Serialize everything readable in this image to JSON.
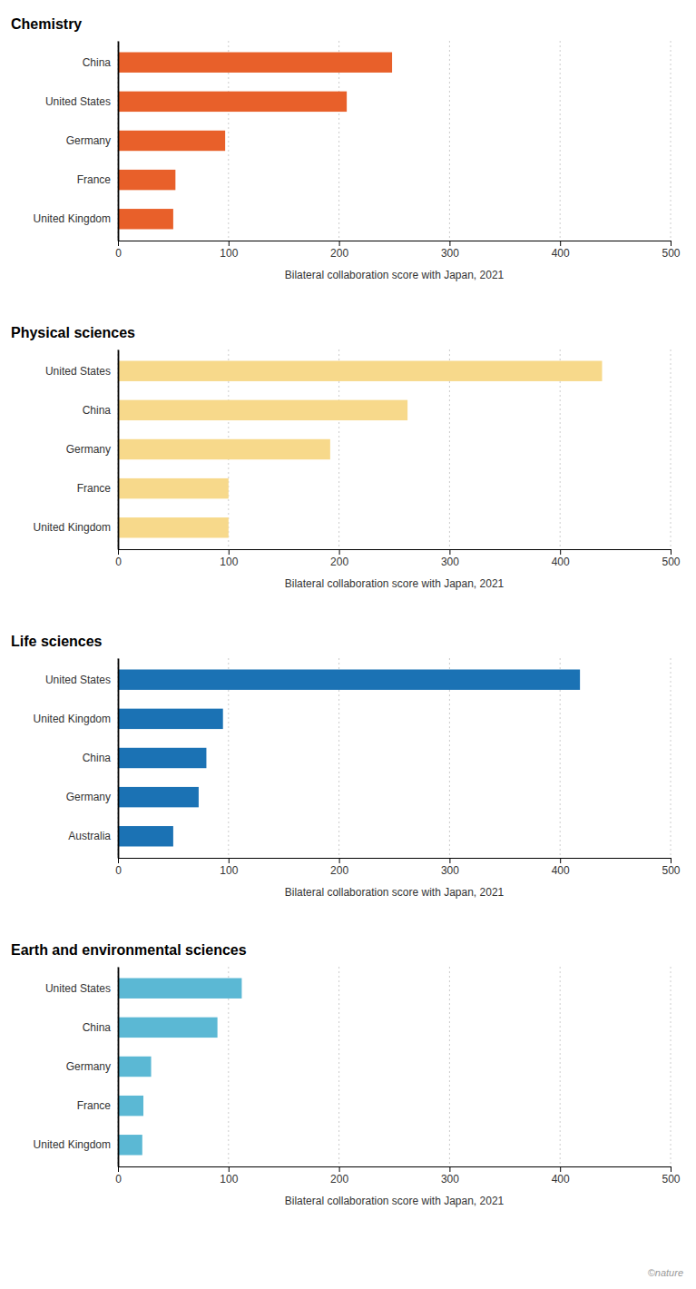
{
  "chart_data": [
    {
      "type": "bar",
      "orientation": "horizontal",
      "title": "Chemistry",
      "categories": [
        "China",
        "United States",
        "Germany",
        "France",
        "United Kingdom"
      ],
      "values": [
        248,
        207,
        97,
        52,
        50
      ],
      "color": "#E8602A",
      "xlabel": "Bilateral collaboration score with Japan, 2021",
      "xlim": [
        0,
        500
      ],
      "xticks": [
        0,
        100,
        200,
        300,
        400,
        500
      ],
      "grid": true
    },
    {
      "type": "bar",
      "orientation": "horizontal",
      "title": "Physical sciences",
      "categories": [
        "United States",
        "China",
        "Germany",
        "France",
        "United Kingdom"
      ],
      "values": [
        438,
        262,
        192,
        100,
        100
      ],
      "color": "#F7D98B",
      "xlabel": "Bilateral collaboration score with Japan, 2021",
      "xlim": [
        0,
        500
      ],
      "xticks": [
        0,
        100,
        200,
        300,
        400,
        500
      ],
      "grid": true
    },
    {
      "type": "bar",
      "orientation": "horizontal",
      "title": "Life sciences",
      "categories": [
        "United States",
        "United Kingdom",
        "China",
        "Germany",
        "Australia"
      ],
      "values": [
        418,
        95,
        80,
        73,
        50
      ],
      "color": "#1B72B4",
      "xlabel": "Bilateral collaboration score with Japan, 2021",
      "xlim": [
        0,
        500
      ],
      "xticks": [
        0,
        100,
        200,
        300,
        400,
        500
      ],
      "grid": true
    },
    {
      "type": "bar",
      "orientation": "horizontal",
      "title": "Earth and environmental sciences",
      "categories": [
        "United States",
        "China",
        "Germany",
        "France",
        "United Kingdom"
      ],
      "values": [
        112,
        90,
        30,
        23,
        22
      ],
      "color": "#5BB8D4",
      "xlabel": "Bilateral collaboration score with Japan, 2021",
      "xlim": [
        0,
        500
      ],
      "xticks": [
        0,
        100,
        200,
        300,
        400,
        500
      ],
      "grid": true,
      "annotation": "©nature"
    }
  ]
}
